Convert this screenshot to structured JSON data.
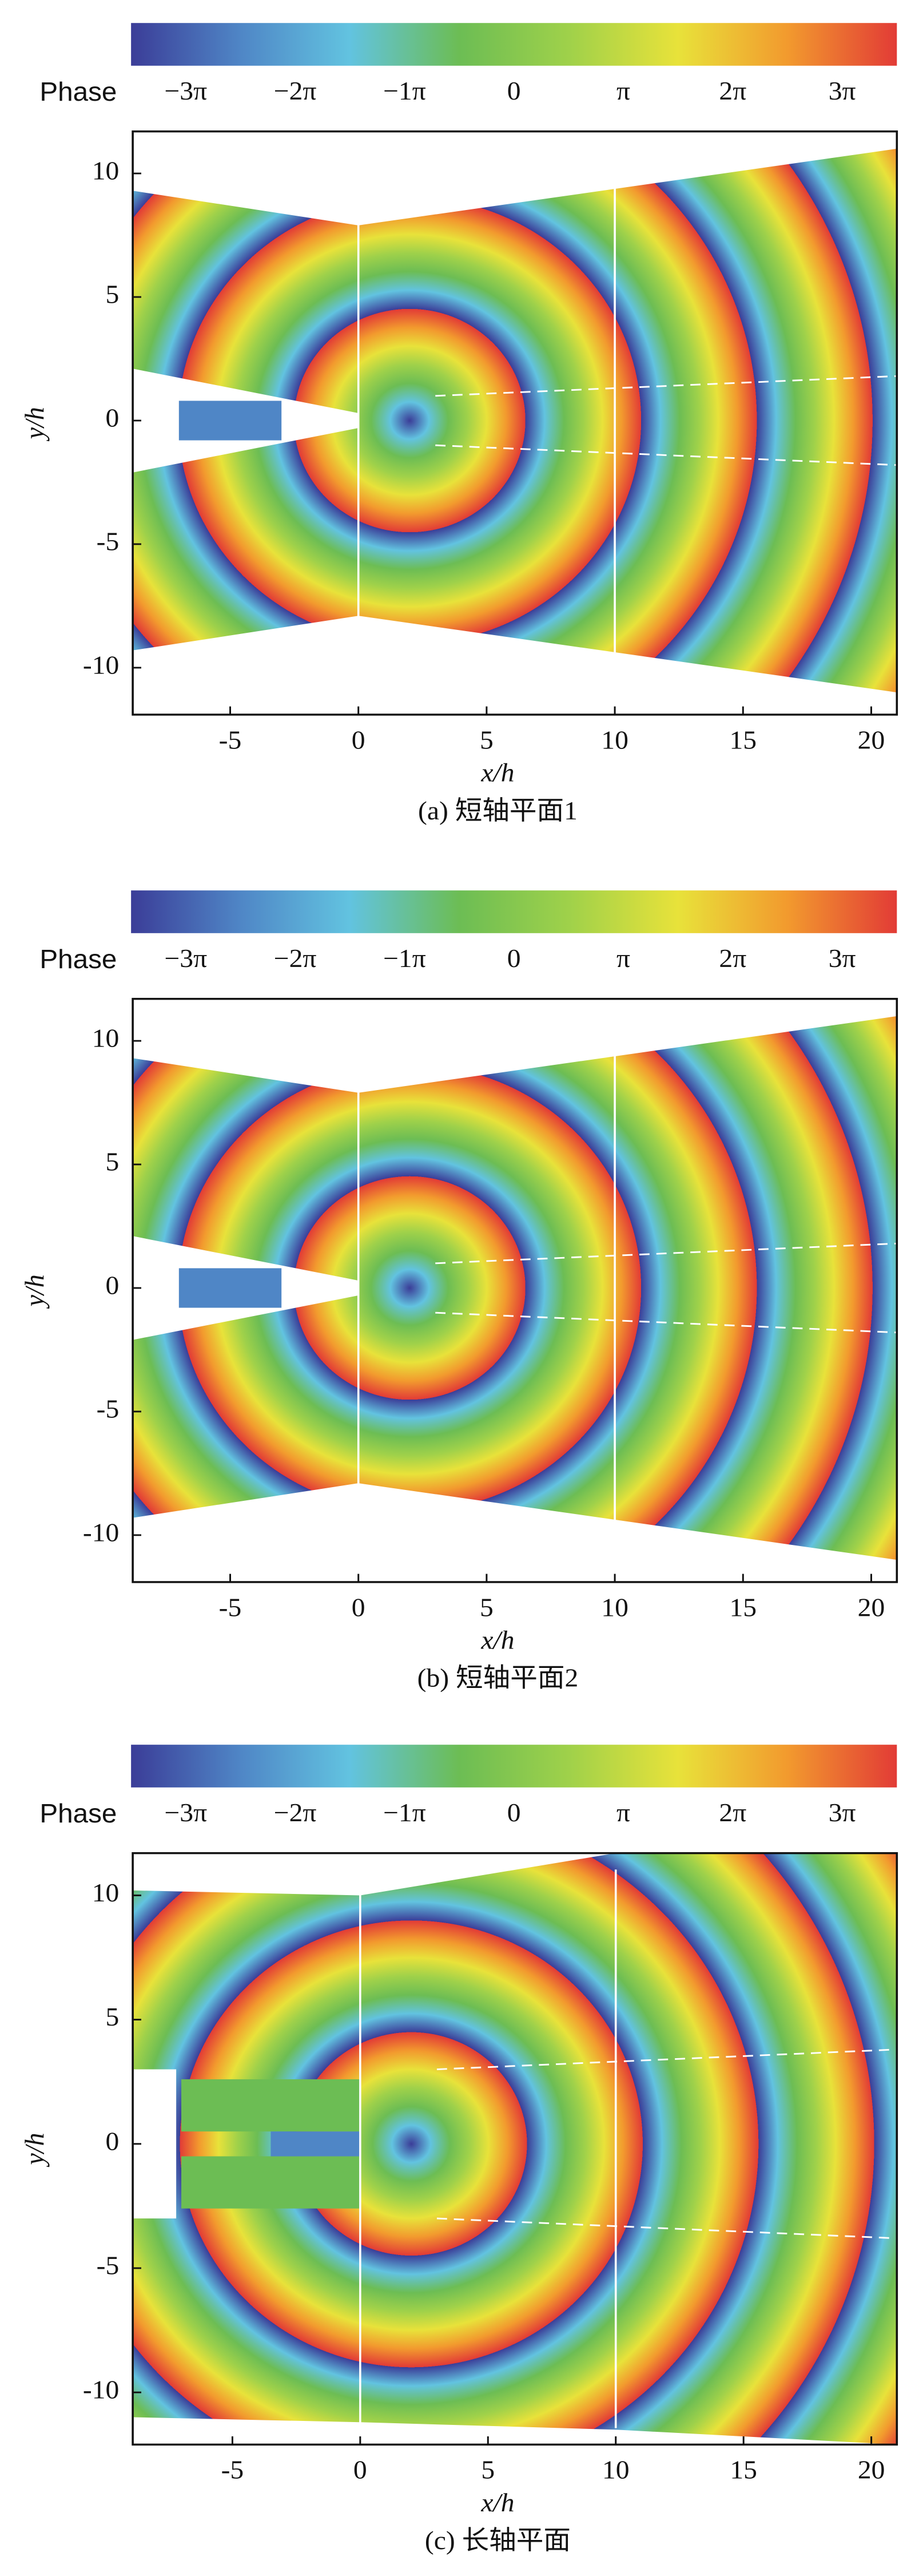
{
  "chart_data": [
    {
      "type": "heatmap",
      "colorbar_label": "Phase",
      "colormap": [
        "#3b3d98",
        "#4f86c6",
        "#62c3e0",
        "#6cbd54",
        "#9fd14a",
        "#e8e23a",
        "#f29a2e",
        "#e23b36"
      ],
      "clim": [
        -3.5,
        3.5
      ],
      "cticks": [
        {
          "value": -3,
          "label": "−3π"
        },
        {
          "value": -2,
          "label": "−2π"
        },
        {
          "value": -1,
          "label": "−1π"
        },
        0,
        {
          "value": 1,
          "label": "π"
        },
        {
          "value": 2,
          "label": "2π"
        },
        {
          "value": 3,
          "label": "3π"
        }
      ],
      "xlabel": "x/h",
      "ylabel": "y/h",
      "xlim": [
        -8.8,
        21
      ],
      "ylim": [
        -11.9,
        11.7
      ],
      "xticks": [
        -5,
        0,
        5,
        10,
        15,
        20
      ],
      "yticks": [
        -10,
        -5,
        0,
        5,
        10
      ],
      "caption": "(a) 短轴平面1"
    },
    {
      "type": "heatmap",
      "colorbar_label": "Phase",
      "colormap": [
        "#3b3d98",
        "#4f86c6",
        "#62c3e0",
        "#6cbd54",
        "#9fd14a",
        "#e8e23a",
        "#f29a2e",
        "#e23b36"
      ],
      "clim": [
        -3.5,
        3.5
      ],
      "cticks": [
        {
          "value": -3,
          "label": "−3π"
        },
        {
          "value": -2,
          "label": "−2π"
        },
        {
          "value": -1,
          "label": "−1π"
        },
        0,
        {
          "value": 1,
          "label": "π"
        },
        {
          "value": 2,
          "label": "2π"
        },
        {
          "value": 3,
          "label": "3π"
        }
      ],
      "xlabel": "x/h",
      "ylabel": "y/h",
      "xlim": [
        -8.8,
        21
      ],
      "ylim": [
        -11.9,
        11.7
      ],
      "xticks": [
        -5,
        0,
        5,
        10,
        15,
        20
      ],
      "yticks": [
        -10,
        -5,
        0,
        5,
        10
      ],
      "caption": "(b) 短轴平面2"
    },
    {
      "type": "heatmap",
      "colorbar_label": "Phase",
      "colormap": [
        "#3b3d98",
        "#4f86c6",
        "#62c3e0",
        "#6cbd54",
        "#9fd14a",
        "#e8e23a",
        "#f29a2e",
        "#e23b36"
      ],
      "clim": [
        -3.5,
        3.5
      ],
      "cticks": [
        {
          "value": -3,
          "label": "−3π"
        },
        {
          "value": -2,
          "label": "−2π"
        },
        {
          "value": -1,
          "label": "−1π"
        },
        0,
        {
          "value": 1,
          "label": "π"
        },
        {
          "value": 2,
          "label": "2π"
        },
        {
          "value": 3,
          "label": "3π"
        }
      ],
      "xlabel": "x/h",
      "ylabel": "y/h",
      "xlim": [
        -8.9,
        21
      ],
      "ylim": [
        -12.1,
        11.7
      ],
      "xticks": [
        -5,
        0,
        5,
        10,
        15,
        20
      ],
      "yticks": [
        -10,
        -5,
        0,
        5,
        10
      ],
      "caption": "(c) 长轴平面"
    }
  ]
}
